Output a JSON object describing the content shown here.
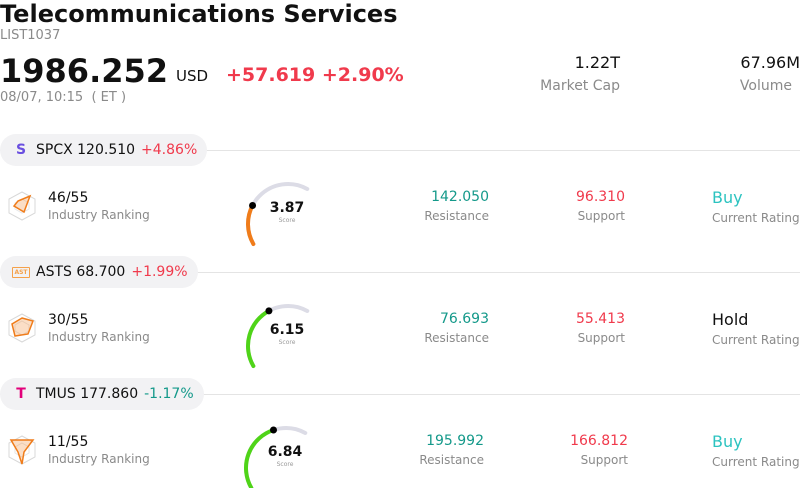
{
  "header": {
    "title": "Telecommunications Services",
    "code": "LIST1037",
    "price": "1986.252",
    "currency": "USD",
    "change": "+57.619",
    "change_pct": "+2.90%",
    "timestamp": "08/07, 10:15  ( ET )",
    "market_cap_value": "1.22T",
    "market_cap_label": "Market Cap",
    "volume_value": "67.96M",
    "volume_label": "Volume"
  },
  "colors": {
    "up": "#f03a4c",
    "down": "#14998a",
    "buy": "#2cc3c0",
    "gauge_low": "#f07c1a",
    "gauge_high": "#4fd418",
    "gauge_track": "#dcdce6"
  },
  "stocks": [
    {
      "logo_icon": "spacex-s-icon",
      "logo_text": "S",
      "ticker_price": "SPCX 120.510",
      "change": "+4.86%",
      "direction": "up",
      "rank": "46/55",
      "rank_label": "Industry Ranking",
      "score": "3.87",
      "score_value": 3.87,
      "score_label": "Score",
      "resistance": "142.050",
      "resistance_label": "Resistance",
      "support": "96.310",
      "support_label": "Support",
      "rating": "Buy",
      "rating_label": "Current Rating"
    },
    {
      "logo_icon": "asts-logo-icon",
      "logo_text": "AST",
      "ticker_price": "ASTS 68.700",
      "change": "+1.99%",
      "direction": "up",
      "rank": "30/55",
      "rank_label": "Industry Ranking",
      "score": "6.15",
      "score_value": 6.15,
      "score_label": "Score",
      "resistance": "76.693",
      "resistance_label": "Resistance",
      "support": "55.413",
      "support_label": "Support",
      "rating": "Hold",
      "rating_label": "Current Rating"
    },
    {
      "logo_icon": "tmobile-t-icon",
      "logo_text": "T",
      "ticker_price": "TMUS 177.860",
      "change": "-1.17%",
      "direction": "down",
      "rank": "11/55",
      "rank_label": "Industry Ranking",
      "score": "6.84",
      "score_value": 6.84,
      "score_label": "Score",
      "resistance": "195.992",
      "resistance_label": "Resistance",
      "support": "166.812",
      "support_label": "Support",
      "rating": "Buy",
      "rating_label": "Current Rating"
    }
  ]
}
